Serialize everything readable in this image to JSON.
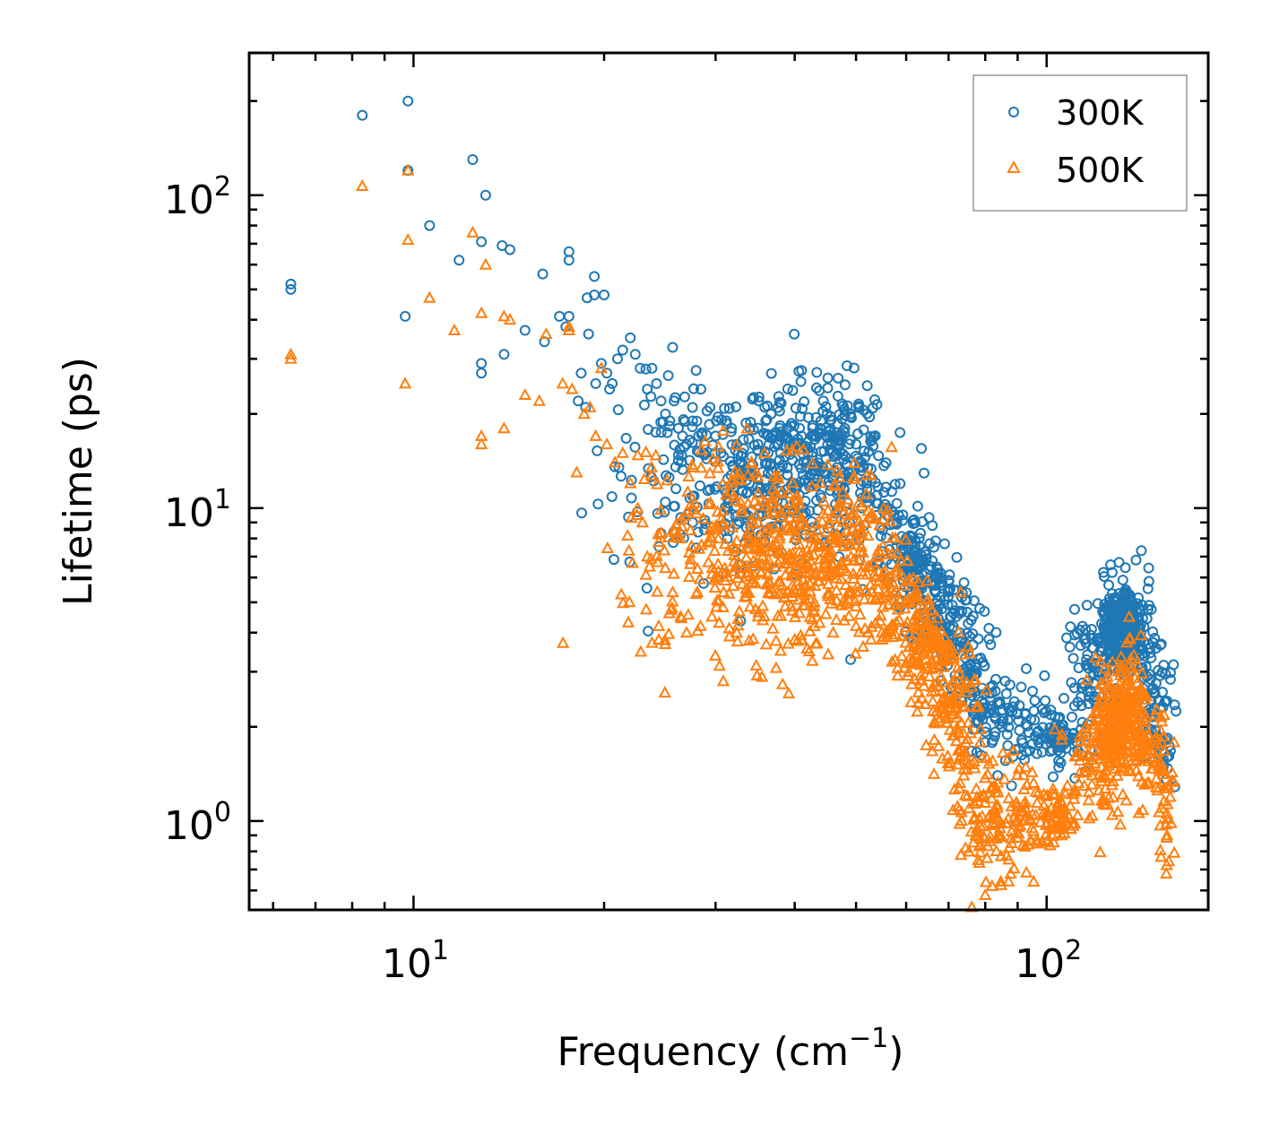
{
  "chart_data": {
    "type": "scatter",
    "title": "",
    "xlabel": "Frequency (cm",
    "xlabel_sup": "−1",
    "xlabel_end": ")",
    "ylabel": "Lifetime (ps)",
    "xscale": "log",
    "yscale": "log",
    "xlim": [
      5.5,
      180
    ],
    "ylim": [
      0.52,
      285
    ],
    "x_major_ticks": [
      {
        "value": 10,
        "base": "10",
        "exp": "1"
      },
      {
        "value": 100,
        "base": "10",
        "exp": "2"
      }
    ],
    "y_major_ticks": [
      {
        "value": 1,
        "base": "10",
        "exp": "0"
      },
      {
        "value": 10,
        "base": "10",
        "exp": "1"
      },
      {
        "value": 100,
        "base": "10",
        "exp": "2"
      }
    ],
    "legend_position": "top-right",
    "series": [
      {
        "name": "300K",
        "color": "#1f77b4",
        "marker": "circle",
        "points": [
          [
            6.4,
            50
          ],
          [
            6.4,
            52
          ],
          [
            8.3,
            180
          ],
          [
            9.8,
            200
          ],
          [
            9.8,
            120
          ],
          [
            9.7,
            41
          ],
          [
            10.6,
            80
          ],
          [
            11.8,
            62
          ],
          [
            12.4,
            130
          ],
          [
            12.8,
            71
          ],
          [
            13.0,
            100
          ],
          [
            12.8,
            29
          ],
          [
            12.8,
            27
          ],
          [
            13.8,
            69
          ],
          [
            14.2,
            67
          ],
          [
            13.9,
            31
          ],
          [
            15.0,
            37
          ],
          [
            16.0,
            56
          ],
          [
            16.1,
            34
          ],
          [
            17.0,
            41
          ],
          [
            17.6,
            66
          ],
          [
            17.6,
            62
          ],
          [
            17.4,
            38
          ],
          [
            17.6,
            41
          ],
          [
            18.8,
            47
          ],
          [
            19.3,
            55
          ],
          [
            19.3,
            48
          ],
          [
            20.0,
            48
          ],
          [
            18.9,
            36
          ],
          [
            18.4,
            27
          ],
          [
            18.2,
            22
          ],
          [
            18.7,
            21
          ],
          [
            19.4,
            25
          ],
          [
            19.8,
            29
          ],
          [
            20.2,
            27
          ],
          [
            20.6,
            25
          ],
          [
            20.4,
            24
          ],
          [
            21.0,
            30
          ],
          [
            21.4,
            32
          ],
          [
            22.0,
            35
          ],
          [
            22.4,
            31
          ],
          [
            22.8,
            28
          ],
          [
            23.4,
            24
          ],
          [
            23.8,
            28
          ],
          [
            24.2,
            25
          ],
          [
            24.6,
            22
          ],
          [
            25.0,
            20
          ],
          [
            25.4,
            19
          ],
          [
            25.8,
            22
          ],
          [
            26.2,
            18
          ],
          [
            26.6,
            17
          ],
          [
            27.0,
            16
          ],
          [
            27.6,
            19
          ],
          [
            28.2,
            17
          ],
          [
            28.8,
            15
          ],
          [
            29.4,
            21
          ],
          [
            30.0,
            17
          ],
          [
            30.6,
            15
          ],
          [
            31.2,
            19
          ],
          [
            31.8,
            18
          ],
          [
            32.4,
            16
          ],
          [
            33.0,
            14
          ],
          [
            34.0,
            18
          ],
          [
            35.0,
            16
          ],
          [
            36.0,
            19
          ],
          [
            37.0,
            17
          ],
          [
            38.0,
            15
          ],
          [
            39.0,
            18
          ],
          [
            40.0,
            16
          ],
          [
            41.0,
            17
          ],
          [
            42.0,
            15
          ],
          [
            43.0,
            17
          ],
          [
            44.0,
            19
          ],
          [
            45.0,
            20
          ],
          [
            46.0,
            17
          ],
          [
            47.0,
            16
          ],
          [
            48.0,
            18
          ],
          [
            49.0,
            20
          ],
          [
            50.0,
            16
          ],
          [
            51.0,
            14
          ],
          [
            52.0,
            12
          ],
          [
            54.0,
            11
          ],
          [
            56.0,
            10
          ],
          [
            58.0,
            9
          ],
          [
            60.0,
            8
          ],
          [
            62.0,
            7.5
          ],
          [
            64.0,
            6.8
          ],
          [
            66.0,
            8.8
          ],
          [
            68.0,
            6.2
          ],
          [
            70.0,
            5.4
          ],
          [
            72.0,
            4.5
          ],
          [
            74.0,
            3.6
          ],
          [
            76.0,
            3.0
          ],
          [
            78.0,
            2.5
          ],
          [
            80.0,
            2.2
          ],
          [
            83.0,
            2.6
          ],
          [
            86.0,
            2.8
          ],
          [
            90.0,
            2.2
          ],
          [
            95.0,
            2.6
          ],
          [
            100.0,
            1.9
          ],
          [
            105.0,
            2.0
          ],
          [
            108.0,
            1.8
          ],
          [
            112.0,
            2.4
          ],
          [
            116.0,
            3.4
          ],
          [
            120.0,
            3.8
          ],
          [
            124.0,
            4.2
          ],
          [
            128.0,
            4.8
          ],
          [
            132.0,
            5.3
          ],
          [
            136.0,
            4.6
          ],
          [
            140.0,
            3.6
          ],
          [
            144.0,
            2.9
          ],
          [
            148.0,
            2.3
          ],
          [
            152.0,
            1.8
          ],
          [
            155.0,
            1.6
          ]
        ],
        "clouds": [
          [
            24.5,
            12,
            0.06,
            0.18,
            35
          ],
          [
            28,
            13,
            0.06,
            0.16,
            60
          ],
          [
            32,
            13,
            0.05,
            0.15,
            80
          ],
          [
            37,
            13,
            0.05,
            0.14,
            110
          ],
          [
            42,
            13.5,
            0.05,
            0.13,
            120
          ],
          [
            47,
            14.5,
            0.04,
            0.12,
            110
          ],
          [
            51,
            12,
            0.03,
            0.14,
            40
          ],
          [
            57,
            8.5,
            0.025,
            0.09,
            50
          ],
          [
            62,
            6.5,
            0.02,
            0.08,
            90
          ],
          [
            67,
            5,
            0.02,
            0.08,
            80
          ],
          [
            72,
            3.8,
            0.02,
            0.09,
            60
          ],
          [
            78,
            2.4,
            0.02,
            0.11,
            60
          ],
          [
            86,
            2.1,
            0.02,
            0.08,
            40
          ],
          [
            95,
            2.0,
            0.02,
            0.05,
            30
          ],
          [
            104,
            1.85,
            0.015,
            0.04,
            60
          ],
          [
            118,
            2.8,
            0.02,
            0.11,
            80
          ],
          [
            128,
            4.0,
            0.015,
            0.08,
            160
          ],
          [
            137,
            4.0,
            0.015,
            0.09,
            110
          ],
          [
            147,
            2.6,
            0.015,
            0.1,
            60
          ],
          [
            154,
            1.8,
            0.008,
            0.08,
            20
          ]
        ]
      },
      {
        "name": "500K",
        "color": "#ff7f0e",
        "marker": "triangle",
        "points": [
          [
            6.4,
            30
          ],
          [
            6.4,
            31
          ],
          [
            8.3,
            107
          ],
          [
            9.8,
            120
          ],
          [
            9.8,
            72
          ],
          [
            9.7,
            25
          ],
          [
            10.6,
            47
          ],
          [
            11.6,
            37
          ],
          [
            12.4,
            76
          ],
          [
            12.8,
            42
          ],
          [
            13.0,
            60
          ],
          [
            12.8,
            17
          ],
          [
            12.8,
            16
          ],
          [
            13.9,
            41
          ],
          [
            14.2,
            40
          ],
          [
            13.9,
            18
          ],
          [
            15.0,
            23
          ],
          [
            15.8,
            22
          ],
          [
            16.2,
            36
          ],
          [
            17.2,
            25
          ],
          [
            17.6,
            38
          ],
          [
            17.6,
            37
          ],
          [
            17.8,
            24
          ],
          [
            18.1,
            13
          ],
          [
            18.6,
            20
          ],
          [
            19.0,
            21
          ],
          [
            19.4,
            17
          ],
          [
            19.8,
            28
          ],
          [
            20.2,
            16
          ],
          [
            20.8,
            14
          ],
          [
            21.4,
            15
          ],
          [
            22.0,
            12
          ],
          [
            22.6,
            10
          ],
          [
            23.0,
            9
          ],
          [
            23.4,
            7
          ],
          [
            23.6,
            6.5
          ],
          [
            24.4,
            4.2
          ],
          [
            24.4,
            3.8
          ],
          [
            25.6,
            4.8
          ],
          [
            26.4,
            4.5
          ],
          [
            27.0,
            4.0
          ],
          [
            28.4,
            4.2
          ],
          [
            29.6,
            4.5
          ],
          [
            30.4,
            4.3
          ],
          [
            32.4,
            4.0
          ],
          [
            35.0,
            4.5
          ],
          [
            38.0,
            3.5
          ],
          [
            40.0,
            3.8
          ],
          [
            43.0,
            4.2
          ],
          [
            46.0,
            4.0
          ],
          [
            50.0,
            4.2
          ],
          [
            55.0,
            3.8
          ],
          [
            60.0,
            3.2
          ],
          [
            64.0,
            2.7
          ],
          [
            68.0,
            2.3
          ],
          [
            72.0,
            1.8
          ],
          [
            75.0,
            1.2
          ],
          [
            78.0,
            0.75
          ],
          [
            80.0,
            0.58
          ],
          [
            82.0,
            0.62
          ],
          [
            88.0,
            0.85
          ],
          [
            95.0,
            1.05
          ],
          [
            100.0,
            1.2
          ],
          [
            108.0,
            1.05
          ],
          [
            116.0,
            1.5
          ],
          [
            124.0,
            2.1
          ],
          [
            130.0,
            2.5
          ],
          [
            136.0,
            3.3
          ],
          [
            142.0,
            2.6
          ],
          [
            148.0,
            1.6
          ],
          [
            152.0,
            1.1
          ],
          [
            155.0,
            0.9
          ]
        ],
        "clouds": [
          [
            24.5,
            7.5,
            0.06,
            0.2,
            40
          ],
          [
            28,
            7.5,
            0.06,
            0.18,
            60
          ],
          [
            32,
            7.5,
            0.05,
            0.16,
            90
          ],
          [
            37,
            7,
            0.05,
            0.16,
            120
          ],
          [
            42,
            6.5,
            0.05,
            0.15,
            120
          ],
          [
            47,
            8,
            0.04,
            0.13,
            110
          ],
          [
            51,
            6.5,
            0.03,
            0.14,
            40
          ],
          [
            56,
            5,
            0.025,
            0.1,
            50
          ],
          [
            62,
            4.0,
            0.02,
            0.1,
            90
          ],
          [
            67,
            3.0,
            0.02,
            0.11,
            80
          ],
          [
            72,
            2.0,
            0.02,
            0.12,
            70
          ],
          [
            78,
            1.15,
            0.02,
            0.15,
            70
          ],
          [
            86,
            1.0,
            0.02,
            0.1,
            50
          ],
          [
            95,
            1.05,
            0.02,
            0.07,
            40
          ],
          [
            104,
            1.05,
            0.015,
            0.05,
            60
          ],
          [
            118,
            1.6,
            0.02,
            0.1,
            80
          ],
          [
            128,
            2.0,
            0.015,
            0.1,
            160
          ],
          [
            137,
            2.1,
            0.015,
            0.1,
            110
          ],
          [
            147,
            1.6,
            0.015,
            0.12,
            60
          ],
          [
            154,
            1.0,
            0.008,
            0.08,
            20
          ]
        ]
      }
    ]
  }
}
